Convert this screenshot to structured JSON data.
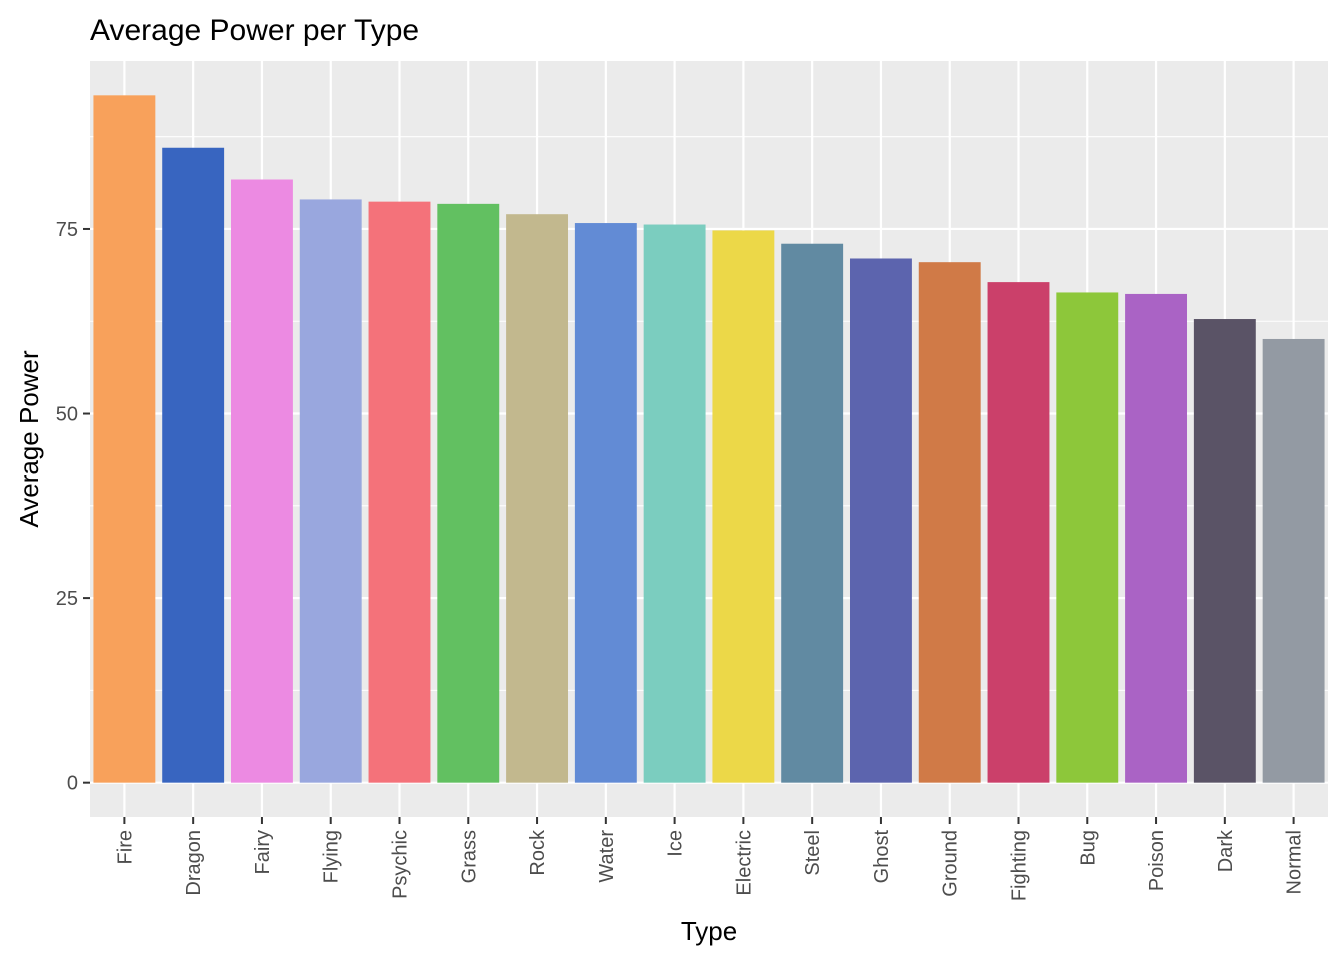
{
  "chart_data": {
    "type": "bar",
    "title": "Average Power per Type",
    "xlabel": "Type",
    "ylabel": "Average Power",
    "categories": [
      "Fire",
      "Dragon",
      "Fairy",
      "Flying",
      "Psychic",
      "Grass",
      "Rock",
      "Water",
      "Ice",
      "Electric",
      "Steel",
      "Ghost",
      "Ground",
      "Fighting",
      "Bug",
      "Poison",
      "Dark",
      "Normal"
    ],
    "values": [
      93.1,
      86.0,
      81.7,
      79.0,
      78.7,
      78.4,
      77.0,
      75.8,
      75.6,
      74.8,
      73.0,
      71.0,
      70.5,
      67.8,
      66.4,
      66.2,
      62.8,
      60.1
    ],
    "colors": [
      "#F8A15B",
      "#3865C0",
      "#EC8AE2",
      "#99A7DE",
      "#F4727A",
      "#62C061",
      "#C2B88E",
      "#628BD5",
      "#7BCDBF",
      "#ECD848",
      "#618AA2",
      "#5C64AE",
      "#D07A47",
      "#CB406A",
      "#8DC73A",
      "#AA63C5",
      "#5A5366",
      "#939AA3"
    ],
    "yticks": [
      0,
      25,
      50,
      75
    ],
    "ylim": [
      -4.65,
      97.75
    ],
    "grid": true,
    "legend": "none",
    "background": "#EBEBEB",
    "gridline_color": "#FFFFFF"
  }
}
